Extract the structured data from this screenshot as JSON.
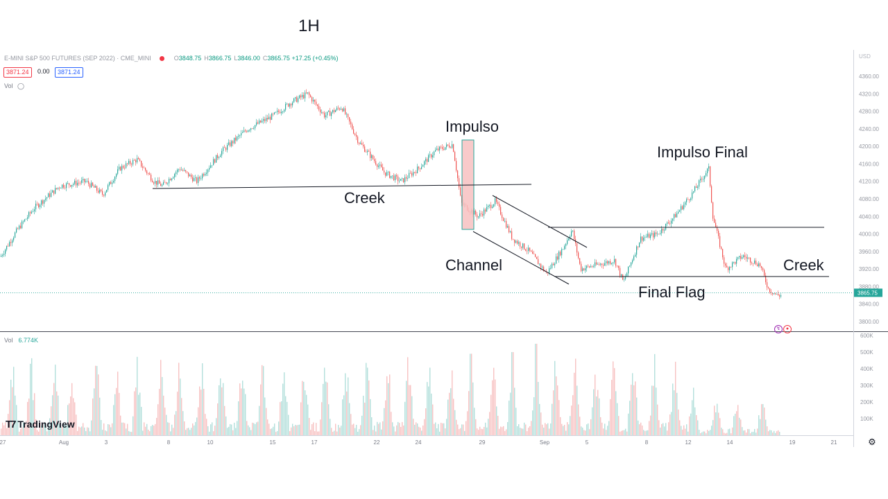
{
  "header": {
    "timeframe": "1H",
    "symbol": "E-MINI S&P 500 FUTURES (SEP 2022) · CME_MINI",
    "ohlc": {
      "o_label": "O",
      "o": "3848.75",
      "h_label": "H",
      "h": "3866.75",
      "l_label": "L",
      "l": "3846.00",
      "c_label": "C",
      "c": "3865.75",
      "change": "+17.25 (+0.45%)"
    },
    "bid": "3871.24",
    "spread": "0.00",
    "ask": "3871.24",
    "vol_label": "Vol",
    "bottom_vol_label": "Vol",
    "bottom_vol_value": "6.774K",
    "logo_text": "TradingView"
  },
  "colors": {
    "up": "#26a69a",
    "down": "#ef5350",
    "line": "#131722",
    "price_label": "#26a69a",
    "impulse_box": "#f7c1c1"
  },
  "chart_data": {
    "type": "candlestick",
    "currency": "USD",
    "price_axis": {
      "min": 3800,
      "max": 4360,
      "ticks": [
        "4360.00",
        "4320.00",
        "4280.00",
        "4240.00",
        "4200.00",
        "4160.00",
        "4120.00",
        "4080.00",
        "4040.00",
        "4000.00",
        "3960.00",
        "3920.00",
        "3880.00",
        "3840.00",
        "3800.00"
      ]
    },
    "volume_axis": {
      "ticks": [
        "600K",
        "500K",
        "400K",
        "300K",
        "200K",
        "100K"
      ]
    },
    "x_ticks": [
      "27",
      "Aug",
      "3",
      "8",
      "10",
      "15",
      "17",
      "22",
      "24",
      "29",
      "Sep",
      "5",
      "8",
      "12",
      "14",
      "19",
      "21"
    ],
    "last_price": "3865.75",
    "price_path": [
      [
        0.0,
        3948
      ],
      [
        0.02,
        4010
      ],
      [
        0.04,
        4060
      ],
      [
        0.07,
        4110
      ],
      [
        0.1,
        4120
      ],
      [
        0.12,
        4090
      ],
      [
        0.14,
        4150
      ],
      [
        0.16,
        4170
      ],
      [
        0.18,
        4120
      ],
      [
        0.19,
        4110
      ],
      [
        0.21,
        4150
      ],
      [
        0.23,
        4120
      ],
      [
        0.26,
        4190
      ],
      [
        0.29,
        4240
      ],
      [
        0.32,
        4270
      ],
      [
        0.34,
        4300
      ],
      [
        0.36,
        4320
      ],
      [
        0.38,
        4270
      ],
      [
        0.4,
        4290
      ],
      [
        0.42,
        4210
      ],
      [
        0.45,
        4140
      ],
      [
        0.47,
        4120
      ],
      [
        0.49,
        4150
      ],
      [
        0.51,
        4190
      ],
      [
        0.53,
        4205
      ],
      [
        0.54,
        4070
      ],
      [
        0.56,
        4040
      ],
      [
        0.58,
        4075
      ],
      [
        0.6,
        3990
      ],
      [
        0.62,
        3960
      ],
      [
        0.64,
        3910
      ],
      [
        0.66,
        3970
      ],
      [
        0.67,
        4010
      ],
      [
        0.68,
        3920
      ],
      [
        0.7,
        3930
      ],
      [
        0.72,
        3940
      ],
      [
        0.73,
        3890
      ],
      [
        0.75,
        3990
      ],
      [
        0.77,
        4000
      ],
      [
        0.79,
        4040
      ],
      [
        0.81,
        4090
      ],
      [
        0.83,
        4150
      ],
      [
        0.835,
        4040
      ],
      [
        0.85,
        3920
      ],
      [
        0.87,
        3950
      ],
      [
        0.89,
        3930
      ],
      [
        0.9,
        3875
      ],
      [
        0.91,
        3860
      ]
    ],
    "volume_profile": "hourly volume bars with spikes at session opens, largest near Aug 26 and Sep 1 (~550K)",
    "annotations": [
      {
        "text": "Impulso",
        "type": "box"
      },
      {
        "text": "Creek",
        "type": "line"
      },
      {
        "text": "Channel",
        "type": "parallel-lines"
      },
      {
        "text": "Impulso Final",
        "type": "label"
      },
      {
        "text": "Creek",
        "type": "line"
      },
      {
        "text": "Final Flag",
        "type": "label"
      }
    ]
  }
}
